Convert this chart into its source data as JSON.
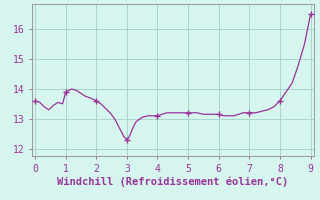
{
  "x": [
    0,
    0.15,
    0.3,
    0.45,
    0.6,
    0.75,
    0.9,
    1.0,
    1.1,
    1.2,
    1.35,
    1.5,
    1.65,
    1.8,
    1.9,
    2.0,
    2.15,
    2.3,
    2.45,
    2.6,
    2.7,
    2.8,
    2.9,
    3.0,
    3.05,
    3.1,
    3.2,
    3.3,
    3.5,
    3.7,
    3.85,
    4.0,
    4.15,
    4.3,
    4.5,
    4.65,
    4.8,
    5.0,
    5.15,
    5.3,
    5.5,
    5.65,
    5.8,
    6.0,
    6.15,
    6.3,
    6.5,
    6.65,
    6.8,
    7.0,
    7.2,
    7.4,
    7.6,
    7.8,
    8.0,
    8.2,
    8.4,
    8.6,
    8.8,
    9.0
  ],
  "y": [
    13.6,
    13.55,
    13.4,
    13.3,
    13.45,
    13.55,
    13.5,
    13.9,
    13.95,
    14.0,
    13.95,
    13.85,
    13.75,
    13.7,
    13.65,
    13.6,
    13.5,
    13.35,
    13.2,
    13.0,
    12.8,
    12.6,
    12.4,
    12.3,
    12.35,
    12.45,
    12.7,
    12.9,
    13.05,
    13.1,
    13.1,
    13.1,
    13.15,
    13.2,
    13.2,
    13.2,
    13.2,
    13.2,
    13.2,
    13.2,
    13.15,
    13.15,
    13.15,
    13.15,
    13.1,
    13.1,
    13.1,
    13.15,
    13.2,
    13.2,
    13.2,
    13.25,
    13.3,
    13.4,
    13.6,
    13.9,
    14.2,
    14.8,
    15.5,
    16.5
  ],
  "marker_x": [
    0,
    1.0,
    2.0,
    3.0,
    4.0,
    5.0,
    6.0,
    7.0,
    8.0,
    9.0
  ],
  "marker_y": [
    13.6,
    13.9,
    13.6,
    12.3,
    13.1,
    13.2,
    13.15,
    13.2,
    13.6,
    16.5
  ],
  "line_color": "#993399",
  "marker_color": "#993399",
  "bg_color": "#d5f5ee",
  "grid_color": "#aad4cc",
  "axis_color": "#777777",
  "tick_color": "#993399",
  "xlabel": "Windchill (Refroidissement éolien,°C)",
  "xlabel_color": "#993399",
  "xlim": [
    -0.1,
    9.1
  ],
  "ylim": [
    11.75,
    16.85
  ],
  "xticks": [
    0,
    1,
    2,
    3,
    4,
    5,
    6,
    7,
    8,
    9
  ],
  "yticks": [
    12,
    13,
    14,
    15,
    16
  ],
  "xlabel_fontsize": 7.5,
  "tick_fontsize": 7.0
}
